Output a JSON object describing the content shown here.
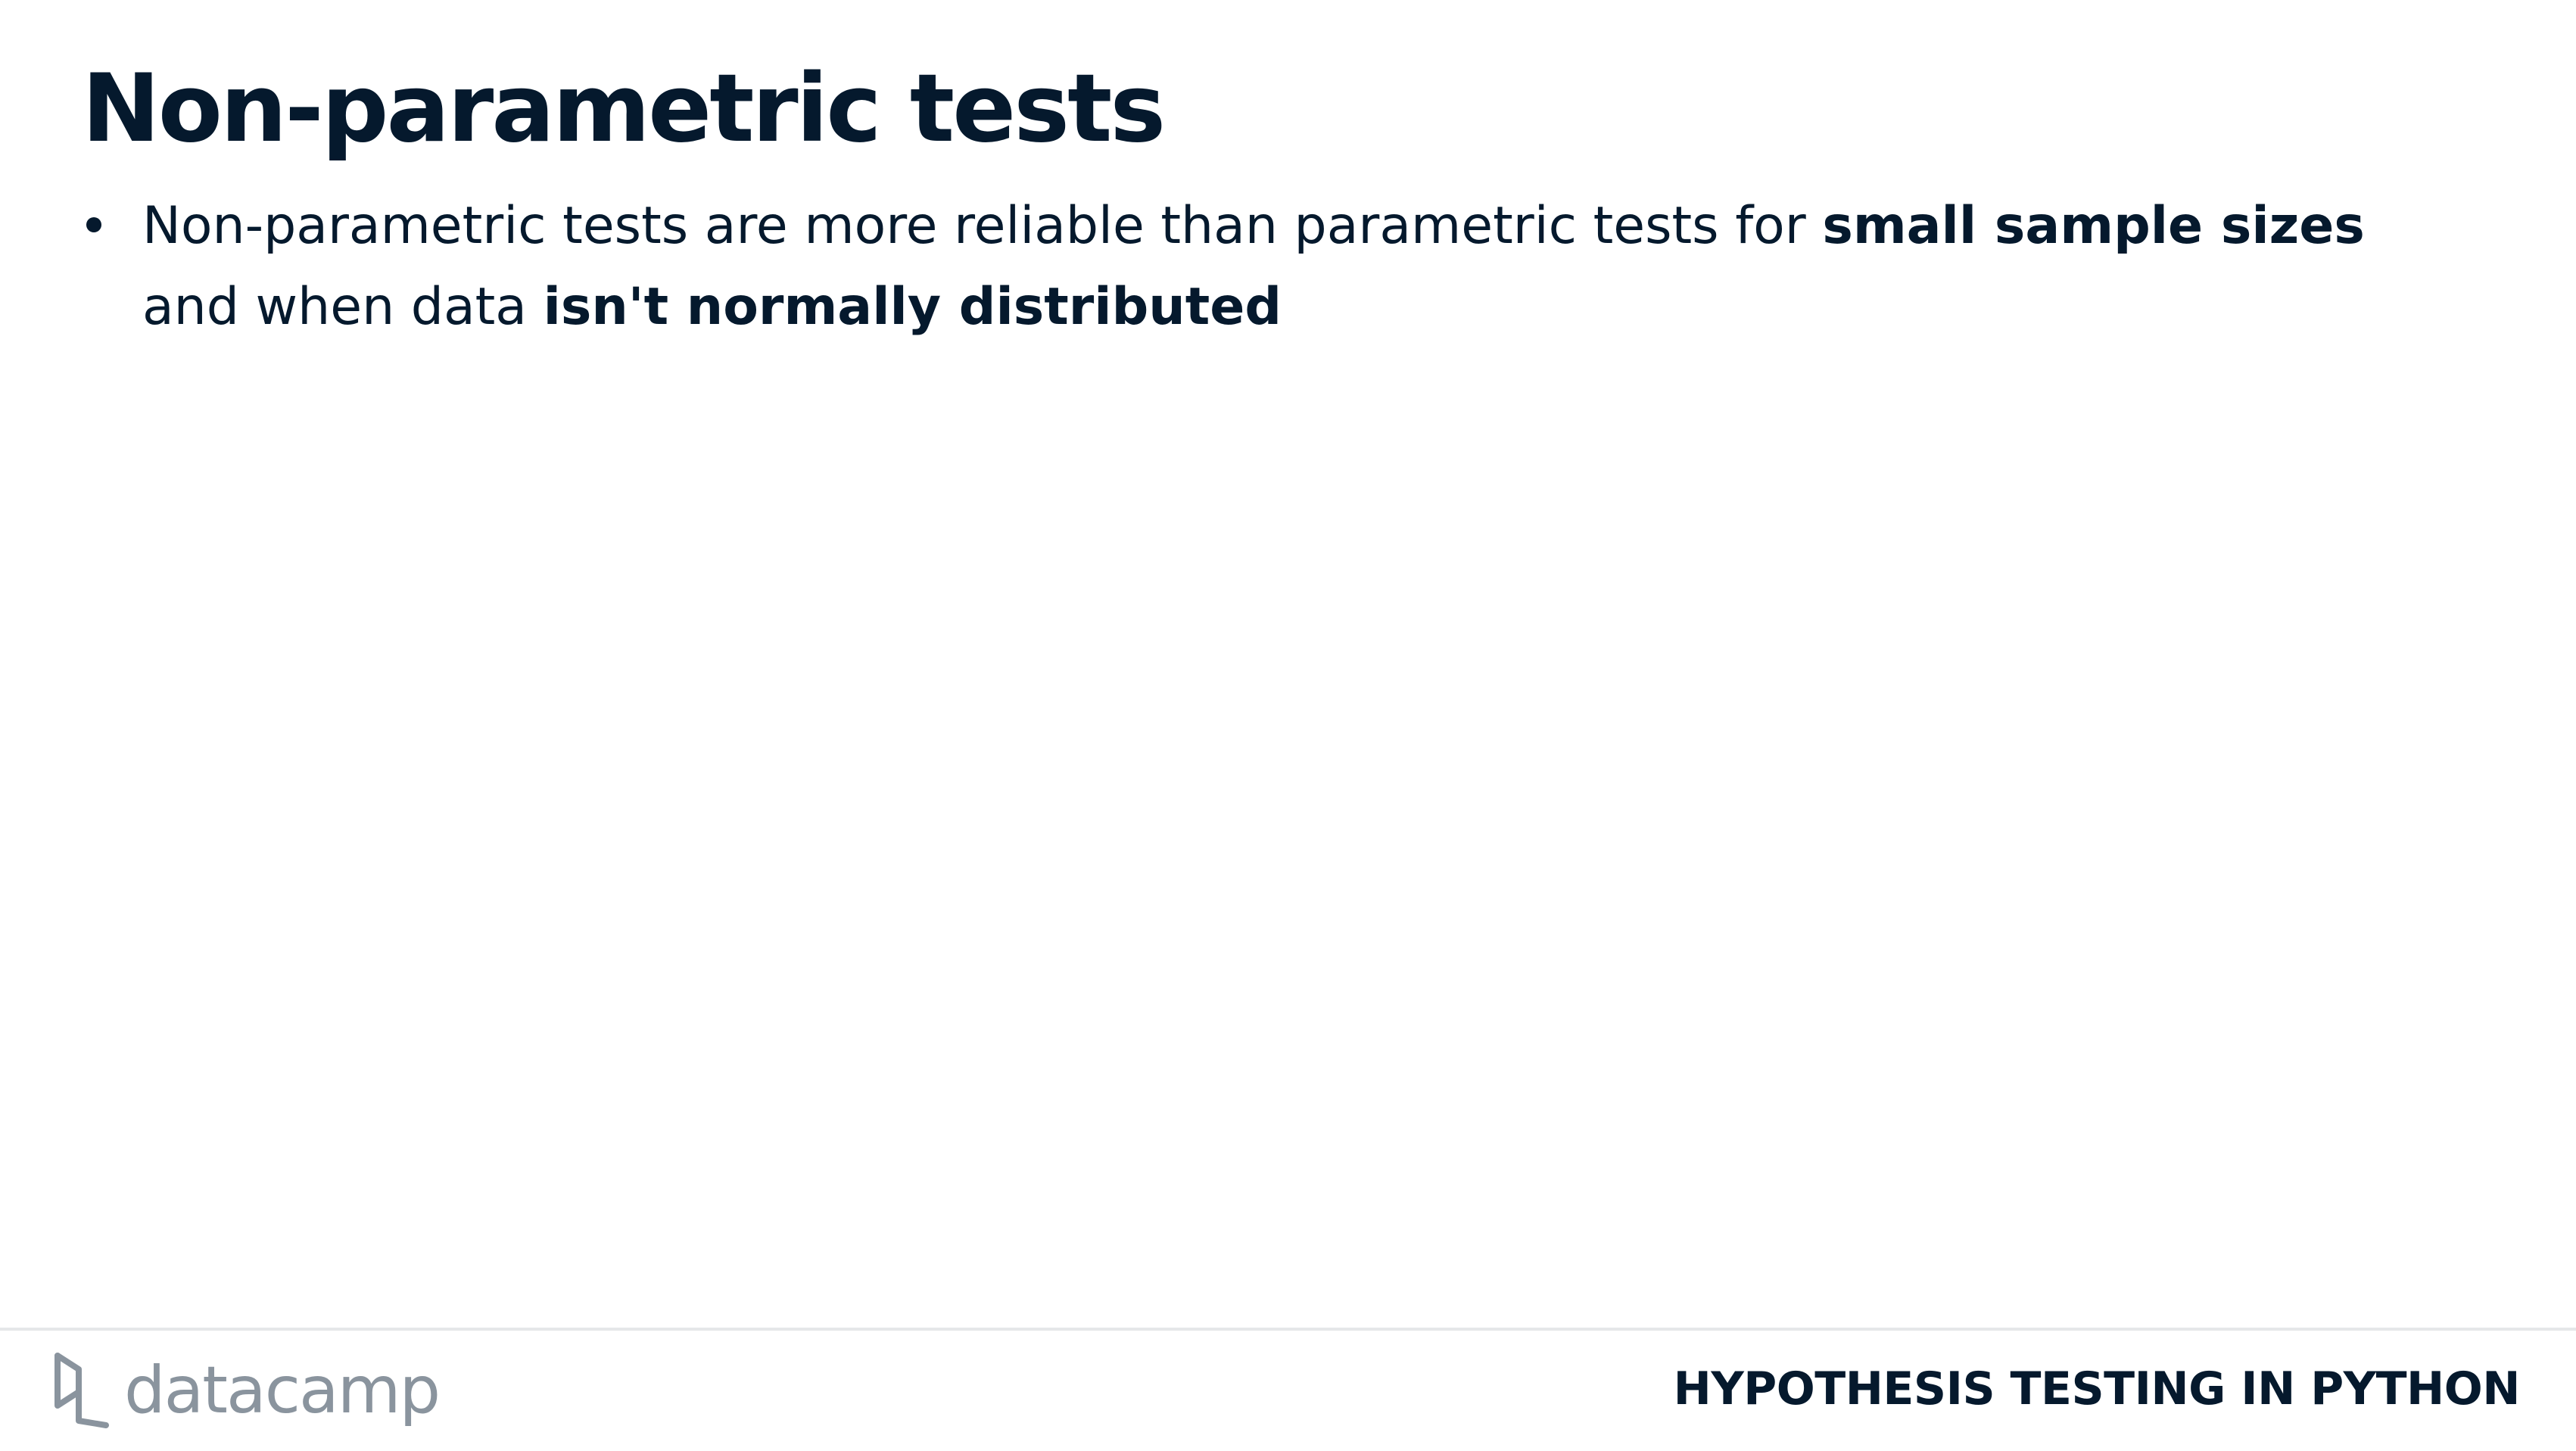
{
  "slide": {
    "title": "Non-parametric tests",
    "bullets": [
      {
        "segments": [
          {
            "text": "Non-parametric tests are more reliable than parametric tests for ",
            "bold": false
          },
          {
            "text": "small sample sizes",
            "bold": true
          },
          {
            "text": " and when data ",
            "bold": false
          },
          {
            "text": "isn't normally distributed",
            "bold": true
          }
        ]
      }
    ]
  },
  "footer": {
    "logo_text": "datacamp",
    "logo_icon": "datacamp-logo-icon",
    "course_title": "HYPOTHESIS TESTING IN PYTHON"
  },
  "colors": {
    "text": "#05192d",
    "logo": "#8a949e",
    "rule": "#e5e7e9",
    "background": "#ffffff"
  }
}
